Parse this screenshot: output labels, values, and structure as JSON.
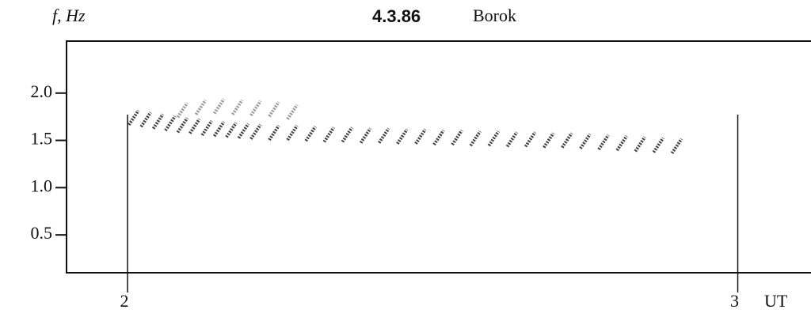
{
  "chart_data": {
    "type": "spectrogram",
    "title": "4.3.86",
    "station": "Borok",
    "y_label": "f, Hz",
    "x_label": "UT",
    "color": "#222222",
    "x": [
      2.01,
      2.03,
      2.05,
      2.07,
      2.09,
      2.11,
      2.13,
      2.15,
      2.17,
      2.19,
      2.21,
      2.24,
      2.27,
      2.3,
      2.33,
      2.36,
      2.39,
      2.42,
      2.45,
      2.48,
      2.51,
      2.54,
      2.57,
      2.6,
      2.63,
      2.66,
      2.69,
      2.72,
      2.75,
      2.78,
      2.81,
      2.84,
      2.87,
      2.9,
      2.09,
      2.12,
      2.15,
      2.18,
      2.21,
      2.24,
      2.27
    ],
    "values": [
      1.74,
      1.72,
      1.7,
      1.68,
      1.66,
      1.65,
      1.63,
      1.62,
      1.61,
      1.6,
      1.59,
      1.58,
      1.58,
      1.57,
      1.56,
      1.56,
      1.55,
      1.55,
      1.54,
      1.54,
      1.53,
      1.53,
      1.52,
      1.52,
      1.51,
      1.51,
      1.5,
      1.5,
      1.49,
      1.48,
      1.47,
      1.46,
      1.45,
      1.44,
      1.82,
      1.85,
      1.86,
      1.85,
      1.84,
      1.83,
      1.8
    ],
    "xlim": [
      1.9,
      3.12
    ],
    "ylim": [
      0.1,
      2.55
    ],
    "xticks": [
      2,
      3
    ],
    "yticks": [
      {
        "value": 0.5,
        "label": "0.5"
      },
      {
        "value": 1.0,
        "label": "1.0"
      },
      {
        "value": 1.5,
        "label": "1.5"
      },
      {
        "value": 2.0,
        "label": "2.0"
      }
    ]
  }
}
